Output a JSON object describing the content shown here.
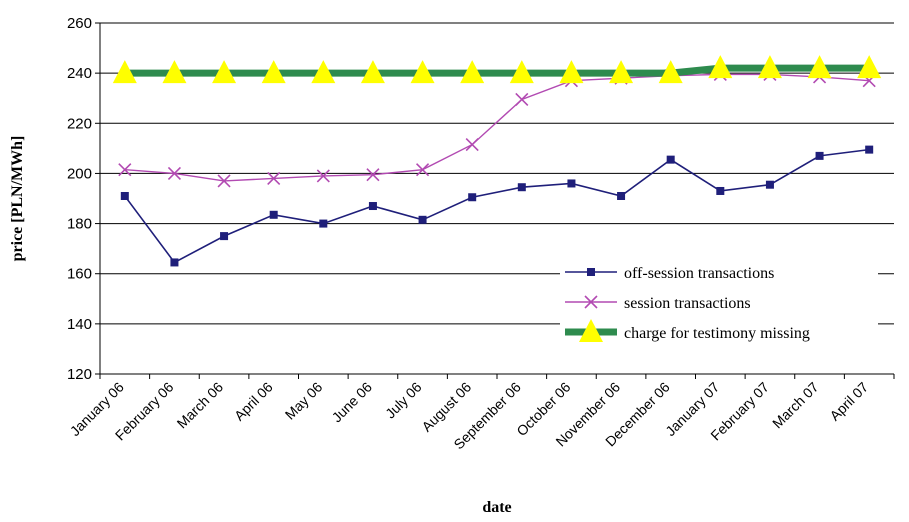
{
  "chart_data": {
    "type": "line",
    "title": "",
    "xlabel": "date",
    "ylabel": "price [PLN/MWh]",
    "ylim": [
      120,
      260
    ],
    "yticks": [
      120,
      140,
      160,
      180,
      200,
      220,
      240,
      260
    ],
    "grid": "horizontal",
    "legend_position": "lower-right",
    "categories": [
      "January 06",
      "February 06",
      "March 06",
      "April 06",
      "May 06",
      "June 06",
      "July 06",
      "August 06",
      "September 06",
      "October 06",
      "November 06",
      "December 06",
      "January 07",
      "February 07",
      "March 07",
      "April 07"
    ],
    "series": [
      {
        "name": "off-session transactions",
        "color": "#1f1f7a",
        "marker": "square",
        "values": [
          191,
          164.5,
          175,
          183.5,
          180,
          187,
          181.5,
          190.5,
          194.5,
          196,
          191,
          205.5,
          193,
          195.5,
          207,
          209.5
        ]
      },
      {
        "name": "session transactions",
        "color": "#b24ab2",
        "marker": "x",
        "values": [
          201.5,
          200,
          197,
          198,
          199,
          199.5,
          201.5,
          211.5,
          229.5,
          237,
          238,
          239,
          239.5,
          239.5,
          238.5,
          237
        ]
      },
      {
        "name": "charge for testimony missing",
        "color": "#2e8b4e",
        "marker": "triangle",
        "marker_color": "#ffff00",
        "values": [
          240,
          240,
          240,
          240,
          240,
          240,
          240,
          240,
          240,
          240,
          240,
          240,
          242,
          242,
          242,
          242
        ]
      }
    ]
  }
}
